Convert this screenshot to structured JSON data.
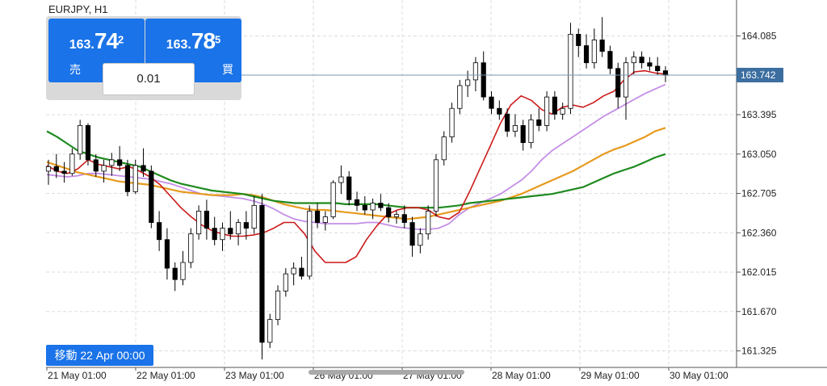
{
  "symbol": "EURJPY, H1",
  "trade_panel": {
    "sell": {
      "prefix": "163.",
      "big": "74",
      "sup": "2",
      "label": "売"
    },
    "buy": {
      "prefix": "163.",
      "big": "78",
      "sup": "5",
      "label": "買"
    },
    "lot": "0.01"
  },
  "navigate_label": "移動 22 Apr 00:00",
  "chart_data": {
    "type": "candlestick",
    "y_ticks": [
      "164.085",
      "163.395",
      "163.050",
      "162.705",
      "162.360",
      "162.015",
      "161.670",
      "161.325"
    ],
    "x_ticks": [
      "21 May 01:00",
      "22 May 01:00",
      "23 May 01:00",
      "26 May 01:00",
      "27 May 01:00",
      "28 May 01:00",
      "29 May 01:00",
      "30 May 01:00"
    ],
    "current_price": "163.742",
    "ylim": [
      161.18,
      164.4
    ],
    "grid": true,
    "colors": {
      "red": "#cc1a1a",
      "green": "#1f8a1f",
      "orange": "#e69a1e",
      "violet": "#c48ee6",
      "price_tag": "#3c6ea0"
    },
    "ma_red": [
      162.95,
      162.9,
      162.88,
      162.92,
      163.0,
      162.96,
      162.94,
      162.92,
      162.94,
      162.9,
      162.85,
      162.78,
      162.68,
      162.58,
      162.5,
      162.43,
      162.38,
      162.35,
      162.33,
      162.33,
      162.34,
      162.36,
      162.4,
      162.45,
      162.45,
      162.35,
      162.2,
      162.1,
      162.1,
      162.1,
      162.15,
      162.3,
      162.42,
      162.52,
      162.56,
      162.58,
      162.58,
      162.56,
      162.5,
      162.48,
      162.54,
      162.72,
      162.92,
      163.12,
      163.32,
      163.48,
      163.56,
      163.52,
      163.44,
      163.4,
      163.46,
      163.48,
      163.46,
      163.5,
      163.56,
      163.6,
      163.7,
      163.77,
      163.78,
      163.76,
      163.75
    ],
    "ma_green": [
      163.25,
      163.2,
      163.14,
      163.08,
      163.05,
      163.02,
      163.0,
      162.98,
      162.96,
      162.94,
      162.9,
      162.86,
      162.82,
      162.79,
      162.77,
      162.75,
      162.73,
      162.72,
      162.71,
      162.7,
      162.68,
      162.66,
      162.64,
      162.63,
      162.62,
      162.62,
      162.62,
      162.62,
      162.62,
      162.61,
      162.61,
      162.61,
      162.61,
      162.6,
      162.59,
      162.58,
      162.58,
      162.58,
      162.58,
      162.59,
      162.6,
      162.62,
      162.63,
      162.64,
      162.65,
      162.66,
      162.67,
      162.68,
      162.69,
      162.7,
      162.72,
      162.74,
      162.76,
      162.8,
      162.84,
      162.88,
      162.91,
      162.94,
      162.98,
      163.02,
      163.05
    ],
    "ma_orange": [
      162.98,
      162.95,
      162.92,
      162.89,
      162.87,
      162.85,
      162.83,
      162.81,
      162.8,
      162.79,
      162.78,
      162.76,
      162.74,
      162.72,
      162.71,
      162.7,
      162.69,
      162.69,
      162.69,
      162.7,
      162.69,
      162.67,
      162.64,
      162.61,
      162.59,
      162.57,
      162.56,
      162.56,
      162.55,
      162.54,
      162.53,
      162.52,
      162.51,
      162.5,
      162.49,
      162.48,
      162.49,
      162.5,
      162.52,
      162.54,
      162.56,
      162.58,
      162.6,
      162.62,
      162.64,
      162.67,
      162.7,
      162.74,
      162.78,
      162.82,
      162.86,
      162.9,
      162.95,
      163.0,
      163.05,
      163.09,
      163.12,
      163.16,
      163.2,
      163.25,
      163.28
    ],
    "ma_violet": [
      162.87,
      162.86,
      162.85,
      162.86,
      162.88,
      162.88,
      162.87,
      162.86,
      162.85,
      162.84,
      162.83,
      162.81,
      162.79,
      162.76,
      162.73,
      162.7,
      162.69,
      162.68,
      162.67,
      162.66,
      162.64,
      162.61,
      162.57,
      162.52,
      162.48,
      162.46,
      162.45,
      162.44,
      162.44,
      162.44,
      162.44,
      162.45,
      162.45,
      162.43,
      162.41,
      162.4,
      162.39,
      162.39,
      162.4,
      162.44,
      162.52,
      162.58,
      162.62,
      162.66,
      162.7,
      162.76,
      162.82,
      162.9,
      163.0,
      163.08,
      163.14,
      163.2,
      163.26,
      163.32,
      163.38,
      163.43,
      163.48,
      163.53,
      163.58,
      163.62,
      163.66
    ],
    "candles": [
      [
        162.9,
        163.0,
        162.78,
        162.94
      ],
      [
        162.94,
        163.05,
        162.84,
        162.9
      ],
      [
        162.9,
        162.98,
        162.8,
        162.88
      ],
      [
        162.88,
        163.1,
        162.86,
        163.05
      ],
      [
        163.05,
        163.35,
        163.0,
        163.3
      ],
      [
        163.3,
        163.32,
        162.95,
        163.0
      ],
      [
        163.0,
        163.05,
        162.85,
        162.9
      ],
      [
        162.9,
        163.0,
        162.8,
        162.95
      ],
      [
        162.95,
        163.06,
        162.86,
        163.0
      ],
      [
        163.0,
        163.12,
        162.9,
        162.95
      ],
      [
        162.95,
        163.0,
        162.68,
        162.72
      ],
      [
        162.72,
        163.0,
        162.7,
        162.95
      ],
      [
        162.95,
        163.1,
        162.85,
        162.9
      ],
      [
        162.9,
        162.95,
        162.4,
        162.45
      ],
      [
        162.45,
        162.55,
        162.2,
        162.3
      ],
      [
        162.3,
        162.4,
        161.95,
        162.05
      ],
      [
        162.05,
        162.1,
        161.85,
        161.95
      ],
      [
        161.95,
        162.2,
        161.9,
        162.1
      ],
      [
        162.1,
        162.4,
        162.05,
        162.35
      ],
      [
        162.35,
        162.6,
        162.3,
        162.55
      ],
      [
        162.55,
        162.65,
        162.3,
        162.4
      ],
      [
        162.4,
        162.5,
        162.25,
        162.3
      ],
      [
        162.3,
        162.45,
        162.2,
        162.4
      ],
      [
        162.4,
        162.55,
        162.3,
        162.35
      ],
      [
        162.35,
        162.48,
        162.25,
        162.45
      ],
      [
        162.45,
        162.55,
        162.3,
        162.4
      ],
      [
        162.4,
        162.68,
        162.35,
        162.6
      ],
      [
        162.6,
        162.7,
        161.25,
        161.4
      ],
      [
        161.4,
        161.65,
        161.35,
        161.6
      ],
      [
        161.6,
        161.9,
        161.55,
        161.85
      ],
      [
        161.85,
        162.05,
        161.8,
        162.0
      ],
      [
        162.0,
        162.1,
        161.9,
        162.05
      ],
      [
        162.05,
        162.15,
        161.95,
        161.98
      ],
      [
        161.98,
        162.6,
        161.95,
        162.55
      ],
      [
        162.55,
        162.62,
        162.4,
        162.45
      ],
      [
        162.45,
        162.55,
        162.38,
        162.5
      ],
      [
        162.5,
        162.82,
        162.48,
        162.8
      ],
      [
        162.8,
        162.95,
        162.7,
        162.85
      ],
      [
        162.85,
        162.9,
        162.6,
        162.65
      ],
      [
        162.65,
        162.72,
        162.55,
        162.6
      ],
      [
        162.6,
        162.68,
        162.52,
        162.56
      ],
      [
        162.56,
        162.66,
        162.48,
        162.62
      ],
      [
        162.62,
        162.7,
        162.55,
        162.58
      ],
      [
        162.58,
        162.62,
        162.45,
        162.5
      ],
      [
        162.5,
        162.55,
        162.44,
        162.52
      ],
      [
        162.52,
        162.6,
        162.4,
        162.45
      ],
      [
        162.45,
        162.5,
        162.15,
        162.25
      ],
      [
        162.25,
        162.4,
        162.18,
        162.35
      ],
      [
        162.35,
        162.6,
        162.3,
        162.55
      ],
      [
        162.55,
        163.05,
        162.5,
        163.0
      ],
      [
        163.0,
        163.25,
        162.95,
        163.2
      ],
      [
        163.2,
        163.5,
        163.15,
        163.45
      ],
      [
        163.45,
        163.7,
        163.4,
        163.65
      ],
      [
        163.65,
        163.78,
        163.55,
        163.7
      ],
      [
        163.7,
        163.9,
        163.6,
        163.85
      ],
      [
        163.85,
        163.95,
        163.52,
        163.55
      ],
      [
        163.55,
        163.6,
        163.4,
        163.45
      ],
      [
        163.45,
        163.52,
        163.35,
        163.4
      ],
      [
        163.4,
        163.45,
        163.2,
        163.25
      ],
      [
        163.25,
        163.4,
        163.2,
        163.3
      ],
      [
        163.3,
        163.35,
        163.08,
        163.15
      ],
      [
        163.15,
        163.4,
        163.1,
        163.35
      ],
      [
        163.35,
        163.45,
        163.25,
        163.3
      ],
      [
        163.3,
        163.6,
        163.25,
        163.55
      ],
      [
        163.55,
        163.6,
        163.35,
        163.4
      ],
      [
        163.4,
        163.5,
        163.35,
        163.45
      ],
      [
        163.45,
        164.2,
        163.4,
        164.1
      ],
      [
        164.1,
        164.15,
        163.9,
        164.0
      ],
      [
        164.0,
        164.1,
        163.8,
        163.85
      ],
      [
        163.85,
        164.15,
        163.8,
        164.05
      ],
      [
        164.05,
        164.25,
        163.9,
        163.95
      ],
      [
        163.95,
        164.0,
        163.75,
        163.8
      ],
      [
        163.8,
        163.85,
        163.45,
        163.55
      ],
      [
        163.55,
        163.9,
        163.35,
        163.85
      ],
      [
        163.85,
        163.95,
        163.75,
        163.9
      ],
      [
        163.9,
        163.95,
        163.8,
        163.85
      ],
      [
        163.85,
        163.9,
        163.78,
        163.82
      ],
      [
        163.82,
        163.9,
        163.74,
        163.78
      ],
      [
        163.78,
        163.82,
        163.68,
        163.74
      ]
    ]
  }
}
